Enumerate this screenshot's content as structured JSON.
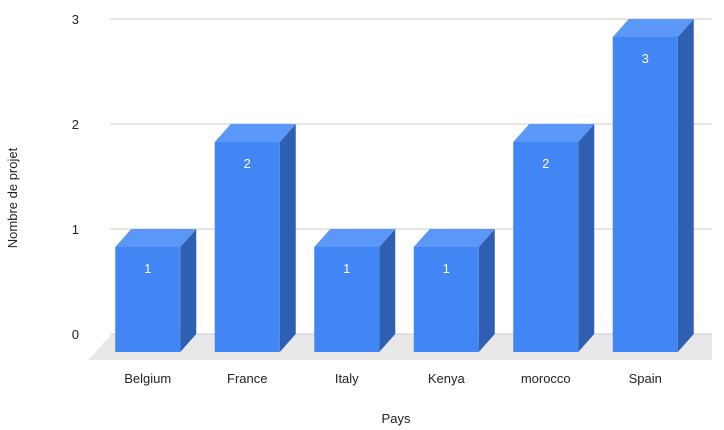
{
  "chart_data": {
    "type": "bar",
    "style": "3d",
    "categories": [
      "Belgium",
      "France",
      "Italy",
      "Kenya",
      "morocco",
      "Spain"
    ],
    "values": [
      1,
      2,
      1,
      1,
      2,
      3
    ],
    "data_labels": [
      "1",
      "2",
      "1",
      "1",
      "2",
      "3"
    ],
    "xlabel": "Pays",
    "ylabel": "Nombre de projet",
    "ylim": [
      0,
      3
    ],
    "yticks": [
      "0",
      "1",
      "2",
      "3"
    ],
    "grid": true,
    "legend": "none",
    "colors": {
      "bar_front": "#4285f4",
      "bar_top": "#5a97f6",
      "bar_side": "#2f5fb3",
      "floor": "#e8e8e8",
      "grid": "#cccccc"
    }
  }
}
